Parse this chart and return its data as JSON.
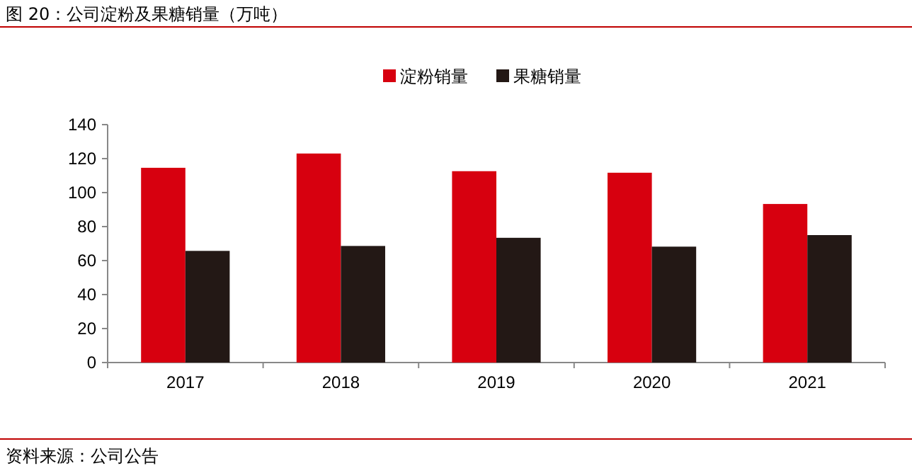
{
  "chart_data": {
    "type": "bar",
    "title": "图 20：公司淀粉及果糖销量（万吨）",
    "categories": [
      "2017",
      "2018",
      "2019",
      "2020",
      "2021"
    ],
    "series": [
      {
        "name": "淀粉销量",
        "color": "#d7000f",
        "values": [
          114.6,
          123,
          112.6,
          111.7,
          93.3
        ]
      },
      {
        "name": "果糖销量",
        "color": "#231815",
        "values": [
          65.7,
          68.6,
          73.4,
          68.2,
          75
        ]
      }
    ],
    "ylim": [
      0,
      140
    ],
    "yticks": [
      0,
      20,
      40,
      60,
      80,
      100,
      120,
      140
    ],
    "grid": false,
    "legend": "top",
    "annotations": [
      "资料来源：公司公告"
    ]
  }
}
